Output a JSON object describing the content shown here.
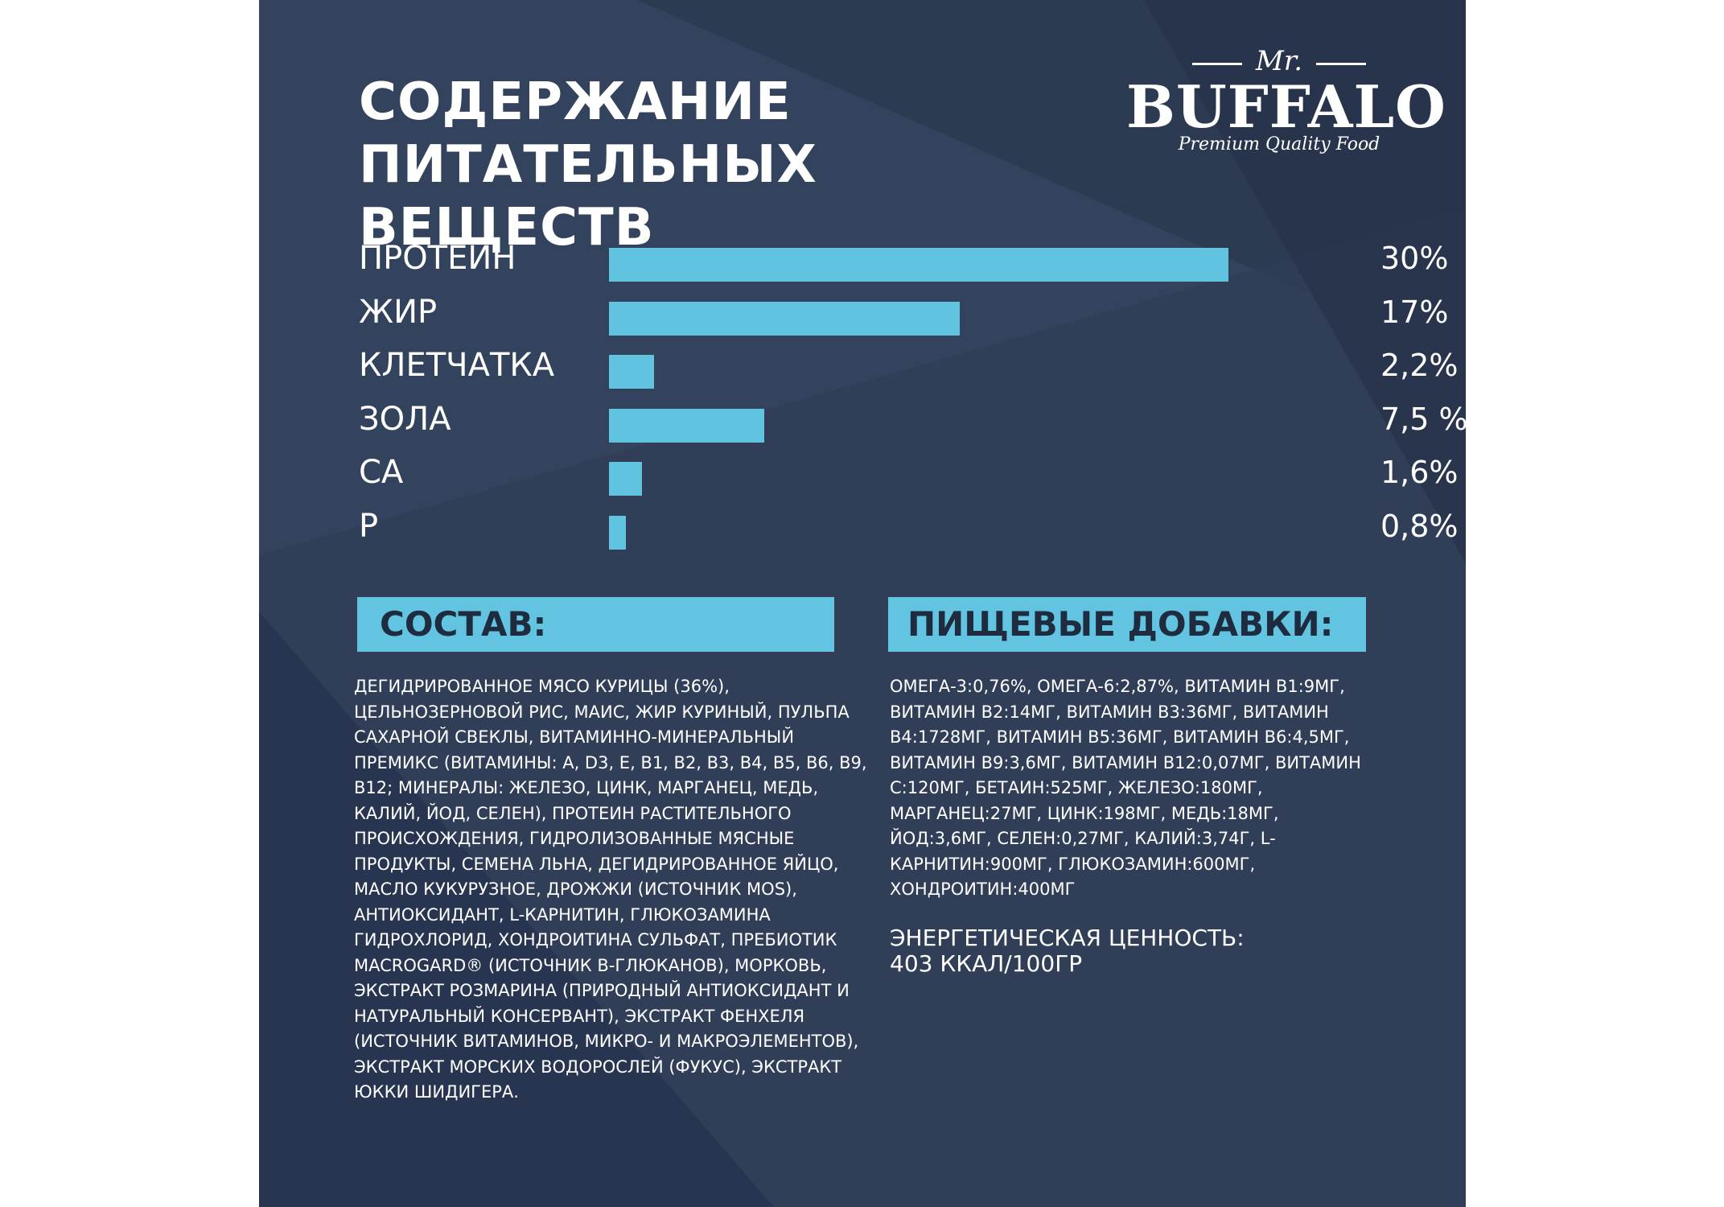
{
  "title": {
    "line1": "СОДЕРЖАНИЕ",
    "line2": "ПИТАТЕЛЬНЫХ ВЕЩЕСТВ"
  },
  "logo": {
    "prefix": "Mr.",
    "brand": "BUFFALO",
    "tagline": "Premium Quality Food"
  },
  "chart_data": {
    "type": "bar",
    "orientation": "horizontal",
    "categories": [
      "ПРОТЕИН",
      "ЖИР",
      "КЛЕТЧАТКА",
      "ЗОЛА",
      "CA",
      "P"
    ],
    "values": [
      30,
      17,
      2.2,
      7.5,
      1.6,
      0.8
    ],
    "value_labels": [
      "30%",
      "17%",
      "2,2%",
      "7,5 %",
      "1,6%",
      "0,8%"
    ],
    "xlim": [
      0,
      30
    ],
    "grid": false,
    "legend": "none",
    "bar_color": "#60c3df"
  },
  "composition": {
    "header": "СОСТАВ:",
    "text": "ДЕГИДРИРОВАННОЕ МЯСО КУРИЦЫ (36%), ЦЕЛЬНОЗЕРНОВОЙ РИС, МАИС, ЖИР КУРИНЫЙ, ПУЛЬПА САХАРНОЙ СВЕКЛЫ, ВИТАМИННО-МИНЕРАЛЬНЫЙ ПРЕМИКС (ВИТАМИНЫ: A, D3, E, B1, B2, B3, B4, B5, B6, B9, B12; МИНЕРАЛЫ: ЖЕЛЕЗО, ЦИНК, МАРГАНЕЦ, МЕДЬ, КАЛИЙ, ЙОД, СЕЛЕН), ПРОТЕИН РАСТИТЕЛЬНОГО ПРОИСХОЖДЕНИЯ, ГИДРОЛИЗОВАННЫЕ МЯСНЫЕ ПРОДУКТЫ, СЕМЕНА ЛЬНА, ДЕГИДРИРОВАННОЕ ЯЙЦО, МАСЛО КУКУРУЗНОЕ, ДРОЖЖИ (ИСТОЧНИК MOS), АНТИОКСИДАНТ, L-КАРНИТИН, ГЛЮКОЗАМИНА ГИДРОХЛОРИД, ХОНДРОИТИНА СУЛЬФАТ, ПРЕБИОТИК MACROGARD® (ИСТОЧНИК B-ГЛЮКАНОВ), МОРКОВЬ, ЭКСТРАКТ РОЗМАРИНА (ПРИРОДНЫЙ АНТИОКСИДАНТ И НАТУРАЛЬНЫЙ КОНСЕРВАНТ), ЭКСТРАКТ ФЕНХЕЛЯ (ИСТОЧНИК ВИТАМИНОВ, МИКРО- И МАКРОЭЛЕМЕНТОВ), ЭКСТРАКТ МОРСКИХ ВОДОРОСЛЕЙ (ФУКУС), ЭКСТРАКТ ЮККИ ШИДИГЕРА."
  },
  "additives": {
    "header": "ПИЩЕВЫЕ ДОБАВКИ:",
    "text": "ОМЕГА-3:0,76%, ОМЕГА-6:2,87%, ВИТАМИН B1:9МГ, ВИТАМИН B2:14МГ, ВИТАМИН B3:36МГ, ВИТАМИН B4:1728МГ, ВИТАМИН B5:36МГ, ВИТАМИН B6:4,5МГ, ВИТАМИН B9:3,6МГ, ВИТАМИН B12:0,07МГ, ВИТАМИН C:120МГ, БЕТАИН:525МГ, ЖЕЛЕЗО:180МГ, МАРГАНЕЦ:27МГ, ЦИНК:198МГ, МЕДЬ:18МГ, ЙОД:3,6МГ, СЕЛЕН:0,27МГ, КАЛИЙ:3,74Г, L-КАРНИТИН:900МГ, ГЛЮКОЗАМИН:600МГ, ХОНДРОИТИН:400МГ"
  },
  "energy": {
    "label": "ЭНЕРГЕТИЧЕСКАЯ ЦЕННОСТЬ:",
    "value": "403 ККАЛ/100ГР"
  },
  "colors": {
    "background": "#2c3a52",
    "accent": "#60c3df",
    "text": "#ffffff",
    "header_text": "#1f2b3f"
  }
}
